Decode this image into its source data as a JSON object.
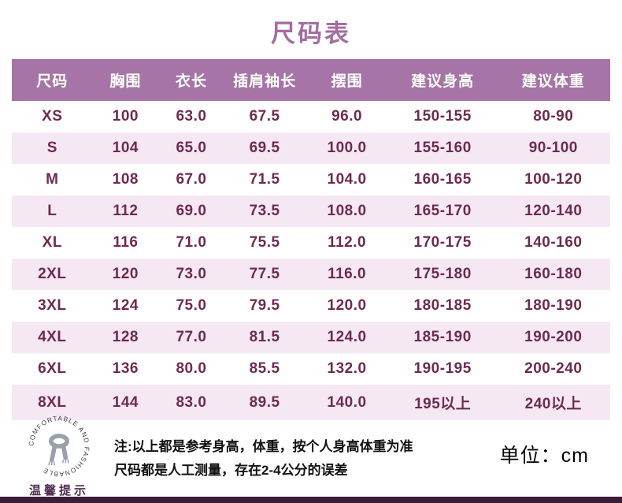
{
  "page": {
    "title": "尺码表",
    "unit_label": "单位：cm",
    "note_line1": "注:以上都是参考身高，体重，按个人身高体重为准",
    "note_line2": "尺码都是人工测量，存在2-4公分的误差",
    "stamp_text": "COMFORTABLE AND FASHIONABLE",
    "stamp_caption": "温馨提示"
  },
  "colors": {
    "title_text": "#a46ba3",
    "header_bg": "#a674a6",
    "header_text": "#ffffff",
    "row_alt_bg": "#f5e8f3",
    "data_text": "#6e2a50",
    "bottom_bar": "#3b1e3b"
  },
  "chart_data": {
    "type": "table",
    "title": "尺码表",
    "unit": "cm",
    "columns": [
      "尺码",
      "胸围",
      "衣长",
      "插肩袖长",
      "摆围",
      "建议身高",
      "建议体重"
    ],
    "rows": [
      [
        "XS",
        "100",
        "63.0",
        "67.5",
        "96.0",
        "150-155",
        "80-90"
      ],
      [
        "S",
        "104",
        "65.0",
        "69.5",
        "100.0",
        "155-160",
        "90-100"
      ],
      [
        "M",
        "108",
        "67.0",
        "71.5",
        "104.0",
        "160-165",
        "100-120"
      ],
      [
        "L",
        "112",
        "69.0",
        "73.5",
        "108.0",
        "165-170",
        "120-140"
      ],
      [
        "XL",
        "116",
        "71.0",
        "75.5",
        "112.0",
        "170-175",
        "140-160"
      ],
      [
        "2XL",
        "120",
        "73.0",
        "77.5",
        "116.0",
        "175-180",
        "160-180"
      ],
      [
        "3XL",
        "124",
        "75.0",
        "79.5",
        "120.0",
        "180-185",
        "180-190"
      ],
      [
        "4XL",
        "128",
        "77.0",
        "81.5",
        "124.0",
        "185-190",
        "190-200"
      ],
      [
        "6XL",
        "136",
        "80.0",
        "85.5",
        "132.0",
        "190-195",
        "200-240"
      ],
      [
        "8XL",
        "144",
        "83.0",
        "89.5",
        "140.0",
        "195以上",
        "240以上"
      ]
    ]
  }
}
